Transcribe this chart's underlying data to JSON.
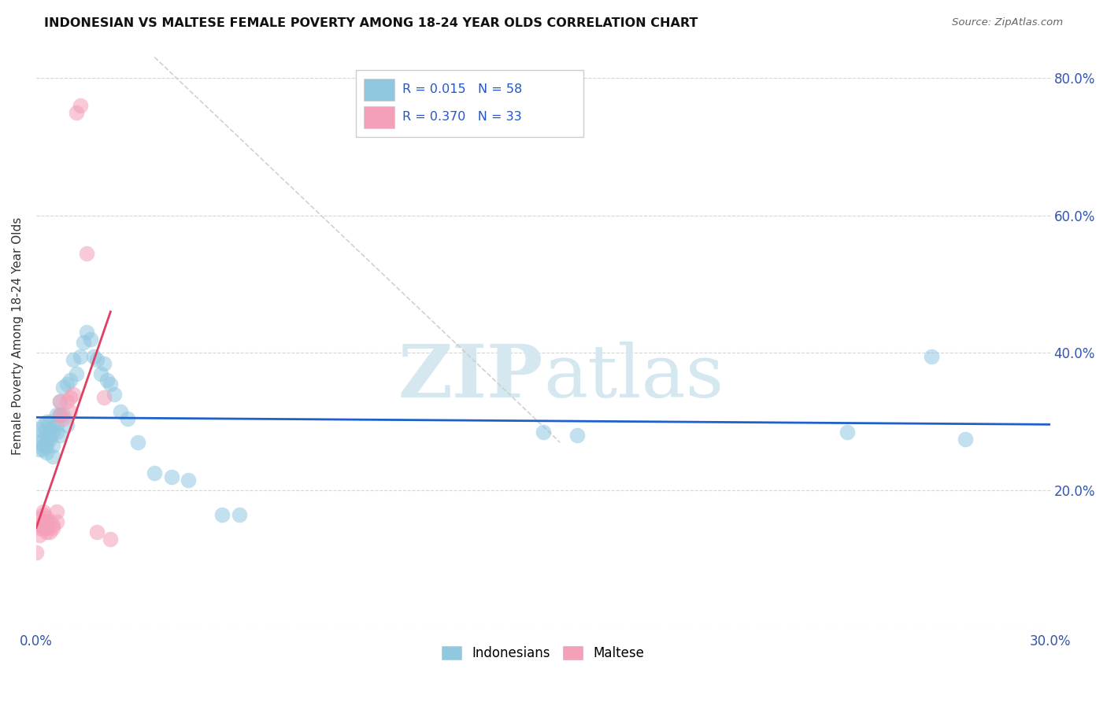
{
  "title": "INDONESIAN VS MALTESE FEMALE POVERTY AMONG 18-24 YEAR OLDS CORRELATION CHART",
  "source": "Source: ZipAtlas.com",
  "ylabel": "Female Poverty Among 18-24 Year Olds",
  "xlim": [
    0.0,
    0.3
  ],
  "ylim": [
    0.0,
    0.85
  ],
  "x_ticks": [
    0.0,
    0.05,
    0.1,
    0.15,
    0.2,
    0.25,
    0.3
  ],
  "x_tick_labels": [
    "0.0%",
    "",
    "",
    "",
    "",
    "",
    "30.0%"
  ],
  "y_ticks": [
    0.0,
    0.2,
    0.4,
    0.6,
    0.8
  ],
  "y_tick_labels": [
    "",
    "20.0%",
    "40.0%",
    "60.0%",
    "80.0%"
  ],
  "indonesian_color": "#90C8E0",
  "maltese_color": "#F4A0B8",
  "trendline1_color": "#2060CC",
  "trendline2_color": "#E04060",
  "watermark_color": "#D5E8F0",
  "indonesian_x": [
    0.001,
    0.001,
    0.001,
    0.002,
    0.002,
    0.002,
    0.002,
    0.002,
    0.003,
    0.003,
    0.003,
    0.003,
    0.003,
    0.004,
    0.004,
    0.004,
    0.004,
    0.005,
    0.005,
    0.005,
    0.005,
    0.006,
    0.006,
    0.006,
    0.007,
    0.007,
    0.007,
    0.008,
    0.008,
    0.009,
    0.009,
    0.01,
    0.011,
    0.012,
    0.013,
    0.014,
    0.015,
    0.016,
    0.017,
    0.018,
    0.019,
    0.02,
    0.021,
    0.022,
    0.023,
    0.025,
    0.027,
    0.03,
    0.035,
    0.04,
    0.045,
    0.055,
    0.06,
    0.15,
    0.16,
    0.24,
    0.265,
    0.275
  ],
  "indonesian_y": [
    0.29,
    0.27,
    0.26,
    0.285,
    0.265,
    0.295,
    0.275,
    0.26,
    0.285,
    0.27,
    0.3,
    0.265,
    0.255,
    0.29,
    0.28,
    0.3,
    0.275,
    0.285,
    0.265,
    0.295,
    0.25,
    0.31,
    0.285,
    0.295,
    0.33,
    0.31,
    0.28,
    0.35,
    0.31,
    0.355,
    0.295,
    0.36,
    0.39,
    0.37,
    0.395,
    0.415,
    0.43,
    0.42,
    0.395,
    0.39,
    0.37,
    0.385,
    0.36,
    0.355,
    0.34,
    0.315,
    0.305,
    0.27,
    0.225,
    0.22,
    0.215,
    0.165,
    0.165,
    0.285,
    0.28,
    0.285,
    0.395,
    0.275
  ],
  "maltese_x": [
    0.0,
    0.001,
    0.001,
    0.001,
    0.001,
    0.002,
    0.002,
    0.002,
    0.002,
    0.002,
    0.003,
    0.003,
    0.003,
    0.003,
    0.004,
    0.004,
    0.005,
    0.005,
    0.006,
    0.006,
    0.007,
    0.007,
    0.008,
    0.009,
    0.01,
    0.01,
    0.011,
    0.012,
    0.013,
    0.015,
    0.018,
    0.02,
    0.022
  ],
  "maltese_y": [
    0.11,
    0.145,
    0.135,
    0.16,
    0.15,
    0.165,
    0.15,
    0.17,
    0.155,
    0.145,
    0.155,
    0.14,
    0.16,
    0.145,
    0.155,
    0.14,
    0.15,
    0.145,
    0.17,
    0.155,
    0.31,
    0.33,
    0.305,
    0.33,
    0.335,
    0.315,
    0.34,
    0.75,
    0.76,
    0.545,
    0.14,
    0.335,
    0.13
  ],
  "diag_line_x": [
    0.035,
    0.155
  ],
  "diag_line_y": [
    0.83,
    0.27
  ]
}
